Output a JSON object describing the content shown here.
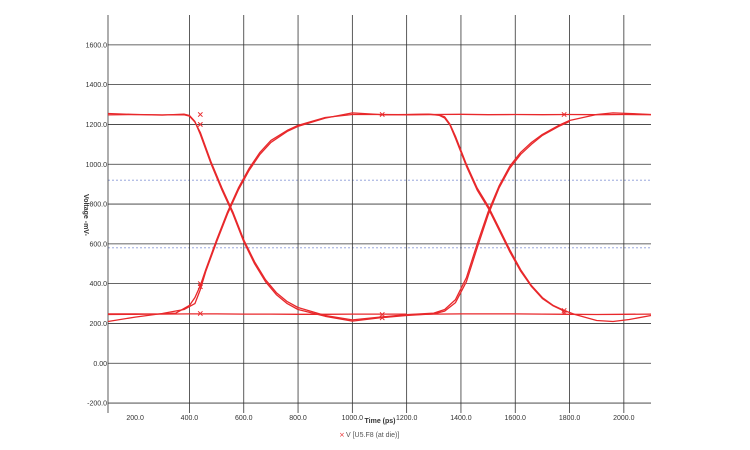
{
  "chart_data": {
    "type": "line",
    "xlabel": "Time (ps)",
    "ylabel": "Voltage -mV-",
    "xlim": [
      100,
      2100
    ],
    "ylim": [
      -250,
      1750
    ],
    "x_ticks": [
      "200.0",
      "400.0",
      "600.0",
      "800.0",
      "1000.0",
      "1200.0",
      "1400.0",
      "1600.0",
      "1800.0",
      "2000.0"
    ],
    "y_ticks": [
      "-200.0",
      "0.00",
      "200.0",
      "400.0",
      "600.0",
      "800.0",
      "1000.0",
      "1200.0",
      "1400.0",
      "1600.0"
    ],
    "x_tick_values": [
      200,
      400,
      600,
      800,
      1000,
      1200,
      1400,
      1600,
      1800,
      2000
    ],
    "y_tick_values": [
      -200,
      0,
      200,
      400,
      600,
      800,
      1000,
      1200,
      1400,
      1600
    ],
    "vertical_gridlines": [
      100,
      400,
      600,
      800,
      1000,
      1200,
      1400,
      1600,
      1800,
      2000
    ],
    "threshold_lines": [
      920,
      580
    ],
    "grid": true,
    "legend_position": "bottom-center",
    "colors": {
      "trace": "#e8282b",
      "grid": "#333333",
      "threshold": "#8a9bd8"
    },
    "series": [
      {
        "name": "V [U5.F8 (at die)]",
        "traces": [
          [
            [
              100,
              1248
            ],
            [
              200,
              1250
            ],
            [
              300,
              1247
            ],
            [
              350,
              1250
            ],
            [
              380,
              1252
            ],
            [
              400,
              1245
            ],
            [
              420,
              1215
            ],
            [
              440,
              1150
            ],
            [
              480,
              1000
            ],
            [
              520,
              870
            ],
            [
              560,
              750
            ],
            [
              600,
              610
            ],
            [
              640,
              500
            ],
            [
              680,
              410
            ],
            [
              720,
              345
            ],
            [
              760,
              300
            ],
            [
              800,
              270
            ],
            [
              900,
              236
            ],
            [
              1000,
              212
            ],
            [
              1100,
              228
            ],
            [
              1200,
              244
            ],
            [
              1300,
              247
            ],
            [
              1400,
              248
            ],
            [
              1500,
              248
            ],
            [
              1600,
              248
            ],
            [
              1700,
              247
            ],
            [
              1800,
              246
            ],
            [
              1900,
              245
            ],
            [
              2000,
              246
            ],
            [
              2100,
              247
            ]
          ],
          [
            [
              100,
              1255
            ],
            [
              200,
              1250
            ],
            [
              300,
              1248
            ],
            [
              380,
              1249
            ],
            [
              400,
              1242
            ],
            [
              420,
              1212
            ],
            [
              440,
              1160
            ],
            [
              480,
              1010
            ],
            [
              520,
              880
            ],
            [
              560,
              760
            ],
            [
              600,
              620
            ],
            [
              640,
              510
            ],
            [
              680,
              420
            ],
            [
              720,
              355
            ],
            [
              760,
              310
            ],
            [
              800,
              280
            ],
            [
              900,
              240
            ],
            [
              1000,
              218
            ],
            [
              1100,
              232
            ]
          ],
          [
            [
              100,
              245
            ],
            [
              200,
              246
            ],
            [
              300,
              248
            ],
            [
              350,
              252
            ],
            [
              400,
              290
            ],
            [
              420,
              330
            ],
            [
              440,
              390
            ],
            [
              460,
              470
            ],
            [
              500,
              620
            ],
            [
              540,
              760
            ],
            [
              580,
              880
            ],
            [
              620,
              980
            ],
            [
              660,
              1060
            ],
            [
              700,
              1120
            ],
            [
              760,
              1170
            ],
            [
              800,
              1195
            ],
            [
              900,
              1235
            ],
            [
              1000,
              1250
            ],
            [
              1100,
              1250
            ],
            [
              1200,
              1248
            ],
            [
              1300,
              1250
            ],
            [
              1400,
              1251
            ],
            [
              1500,
              1249
            ],
            [
              1600,
              1250
            ],
            [
              1700,
              1249
            ],
            [
              1800,
              1250
            ],
            [
              1900,
              1249
            ],
            [
              2000,
              1250
            ],
            [
              2100,
              1249
            ]
          ],
          [
            [
              100,
              210
            ],
            [
              200,
              232
            ],
            [
              300,
              250
            ],
            [
              380,
              270
            ],
            [
              420,
              300
            ],
            [
              440,
              370
            ],
            [
              460,
              460
            ],
            [
              500,
              610
            ],
            [
              540,
              750
            ],
            [
              580,
              870
            ],
            [
              620,
              970
            ],
            [
              660,
              1050
            ],
            [
              700,
              1110
            ],
            [
              760,
              1165
            ],
            [
              800,
              1190
            ],
            [
              900,
              1232
            ],
            [
              1000,
              1258
            ],
            [
              1100,
              1250
            ]
          ],
          [
            [
              100,
              248
            ],
            [
              200,
              248
            ],
            [
              300,
              247
            ],
            [
              400,
              248
            ],
            [
              500,
              248
            ],
            [
              600,
              247
            ],
            [
              700,
              247
            ],
            [
              800,
              246
            ],
            [
              900,
              246
            ],
            [
              1000,
              247
            ],
            [
              1100,
              247
            ],
            [
              1200,
              247
            ]
          ],
          [
            [
              1100,
              1250
            ],
            [
              1200,
              1249
            ],
            [
              1280,
              1251
            ],
            [
              1320,
              1248
            ],
            [
              1340,
              1238
            ],
            [
              1360,
              1200
            ],
            [
              1380,
              1140
            ],
            [
              1420,
              1000
            ],
            [
              1460,
              880
            ],
            [
              1500,
              790
            ],
            [
              1540,
              680
            ],
            [
              1580,
              570
            ],
            [
              1620,
              470
            ],
            [
              1660,
              390
            ],
            [
              1700,
              330
            ],
            [
              1740,
              290
            ],
            [
              1780,
              265
            ],
            [
              1820,
              245
            ],
            [
              1900,
              215
            ],
            [
              1960,
              210
            ],
            [
              2020,
              220
            ],
            [
              2100,
              240
            ]
          ],
          [
            [
              1100,
              1248
            ],
            [
              1200,
              1250
            ],
            [
              1280,
              1252
            ],
            [
              1320,
              1246
            ],
            [
              1340,
              1232
            ],
            [
              1360,
              1195
            ],
            [
              1380,
              1130
            ],
            [
              1420,
              990
            ],
            [
              1460,
              870
            ],
            [
              1500,
              780
            ],
            [
              1540,
              670
            ],
            [
              1580,
              560
            ],
            [
              1620,
              462
            ],
            [
              1660,
              385
            ],
            [
              1700,
              325
            ],
            [
              1740,
              288
            ],
            [
              1780,
              262
            ]
          ],
          [
            [
              1100,
              232
            ],
            [
              1200,
              244
            ],
            [
              1300,
              252
            ],
            [
              1340,
              270
            ],
            [
              1380,
              320
            ],
            [
              1420,
              430
            ],
            [
              1460,
              600
            ],
            [
              1500,
              760
            ],
            [
              1540,
              890
            ],
            [
              1580,
              990
            ],
            [
              1620,
              1060
            ],
            [
              1660,
              1110
            ],
            [
              1700,
              1150
            ],
            [
              1760,
              1195
            ],
            [
              1800,
              1220
            ],
            [
              1900,
              1250
            ],
            [
              1960,
              1258
            ],
            [
              2020,
              1255
            ],
            [
              2100,
              1250
            ]
          ],
          [
            [
              1100,
              228
            ],
            [
              1200,
              240
            ],
            [
              1300,
              248
            ],
            [
              1340,
              262
            ],
            [
              1380,
              305
            ],
            [
              1420,
              410
            ],
            [
              1460,
              580
            ],
            [
              1500,
              745
            ],
            [
              1540,
              880
            ],
            [
              1580,
              980
            ],
            [
              1620,
              1050
            ],
            [
              1660,
              1100
            ],
            [
              1700,
              1145
            ],
            [
              1760,
              1190
            ],
            [
              1800,
              1215
            ]
          ]
        ],
        "markers": [
          [
            440,
            1250
          ],
          [
            440,
            1200
          ],
          [
            440,
            400
          ],
          [
            440,
            385
          ],
          [
            440,
            250
          ],
          [
            1110,
            1250
          ],
          [
            1110,
            245
          ],
          [
            1110,
            228
          ],
          [
            1780,
            1250
          ],
          [
            1780,
            265
          ],
          [
            1780,
            255
          ]
        ]
      }
    ]
  }
}
